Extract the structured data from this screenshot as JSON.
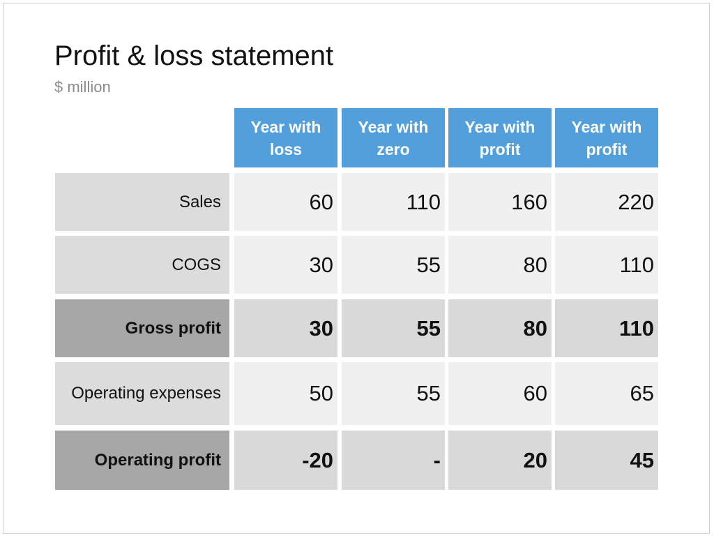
{
  "header": {
    "title": "Profit & loss statement",
    "subtitle": "$ million"
  },
  "table": {
    "columns": [
      "Year with loss",
      "Year with zero",
      "Year with profit",
      "Year with profit"
    ],
    "rows": [
      {
        "label": "Sales",
        "bold": false,
        "cells": [
          "60",
          "110",
          "160",
          "220"
        ]
      },
      {
        "label": "COGS",
        "bold": false,
        "cells": [
          "30",
          "55",
          "80",
          "110"
        ]
      },
      {
        "label": "Gross profit",
        "bold": true,
        "cells": [
          "30",
          "55",
          "80",
          "110"
        ]
      },
      {
        "label": "Operating expenses",
        "bold": false,
        "cells": [
          "50",
          "55",
          "60",
          "65"
        ]
      },
      {
        "label": "Operating profit",
        "bold": true,
        "cells": [
          "-20",
          "-",
          "20",
          "45"
        ]
      }
    ]
  }
}
